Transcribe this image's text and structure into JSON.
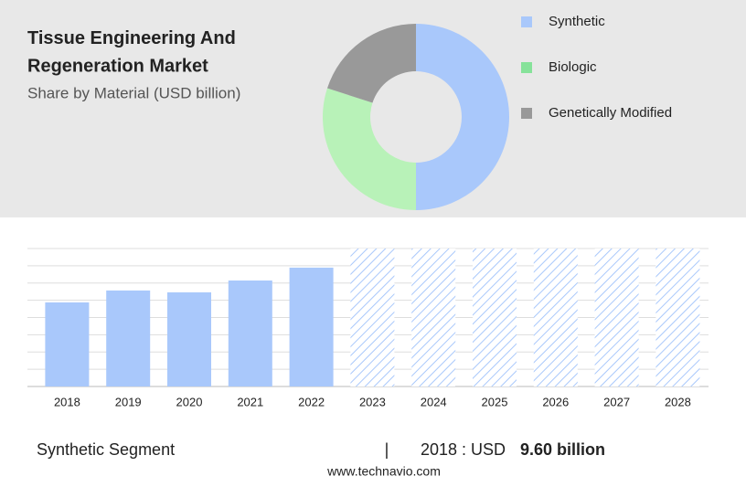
{
  "chart_data": [
    {
      "type": "donut",
      "title": "Tissue Engineering And Regeneration Market",
      "subtitle": "Share by Material (USD billion)",
      "categories": [
        "Synthetic",
        "Biologic",
        "Genetically Modified"
      ],
      "values": [
        50,
        30,
        20
      ],
      "colors": [
        "#a9c8fb",
        "#b8f2b8",
        "#999999"
      ],
      "legend_colors": [
        "#a9c8fb",
        "#86e29a",
        "#999999"
      ]
    },
    {
      "type": "bar",
      "categories": [
        "2018",
        "2019",
        "2020",
        "2021",
        "2022",
        "2023",
        "2024",
        "2025",
        "2026",
        "2027",
        "2028"
      ],
      "values": [
        9.6,
        10.96,
        10.75,
        12.1,
        13.57,
        null,
        null,
        null,
        null,
        null,
        null
      ],
      "color": "#a9c8fb",
      "ylim": [
        0,
        15.75
      ]
    }
  ],
  "footer": {
    "segment": "Synthetic Segment",
    "separator": "|",
    "year_label": "2018 : USD",
    "value_label": "9.60 billion",
    "website": "www.technavio.com"
  }
}
